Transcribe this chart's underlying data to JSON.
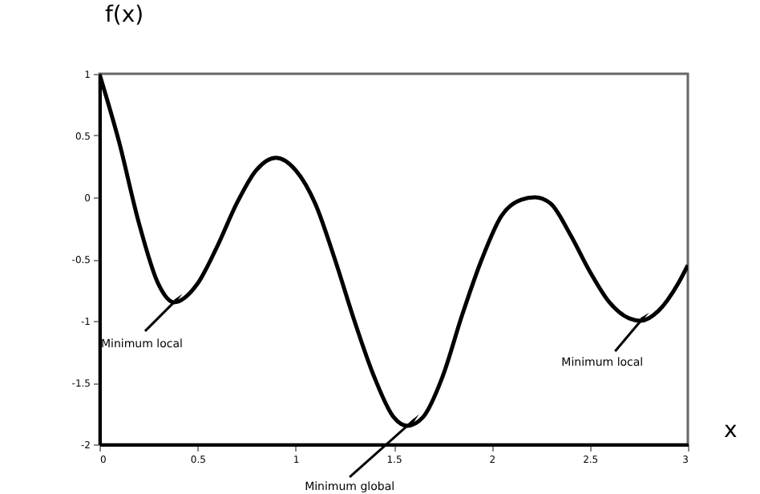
{
  "chart_data": {
    "type": "line",
    "xlabel": "x",
    "ylabel": "f(x)",
    "x": [
      0,
      0.1,
      0.2,
      0.3,
      0.38,
      0.5,
      0.6,
      0.7,
      0.8,
      0.9,
      1.0,
      1.1,
      1.2,
      1.3,
      1.4,
      1.5,
      1.57,
      1.65,
      1.75,
      1.85,
      1.95,
      2.05,
      2.15,
      2.22,
      2.3,
      2.4,
      2.5,
      2.6,
      2.7,
      2.76,
      2.85,
      2.95,
      3.0
    ],
    "series": [
      {
        "color": "#000000",
        "values": [
          1,
          0.45,
          -0.2,
          -0.7,
          -0.85,
          -0.7,
          -0.4,
          -0.05,
          0.22,
          0.32,
          0.22,
          -0.05,
          -0.5,
          -1.0,
          -1.45,
          -1.78,
          -1.85,
          -1.78,
          -1.45,
          -0.95,
          -0.5,
          -0.15,
          -0.02,
          0.0,
          -0.05,
          -0.3,
          -0.6,
          -0.85,
          -0.98,
          -1.0,
          -0.92,
          -0.7,
          -0.55
        ]
      }
    ],
    "xlim": [
      0,
      3
    ],
    "ylim": [
      -2,
      1
    ],
    "xticks": [
      0,
      0.5,
      1,
      1.5,
      2,
      2.5,
      3
    ],
    "yticks": [
      -2,
      -1.5,
      -1,
      -0.5,
      0,
      0.5,
      1
    ],
    "grid": false,
    "marker": "none",
    "line_style": "solid",
    "annotations": [
      {
        "text": "Minimum local",
        "x": 0.38,
        "y": -0.85
      },
      {
        "text": "Minimum global",
        "x": 1.57,
        "y": -1.85
      },
      {
        "text": "Minimum local",
        "x": 2.76,
        "y": -1.0
      }
    ]
  }
}
